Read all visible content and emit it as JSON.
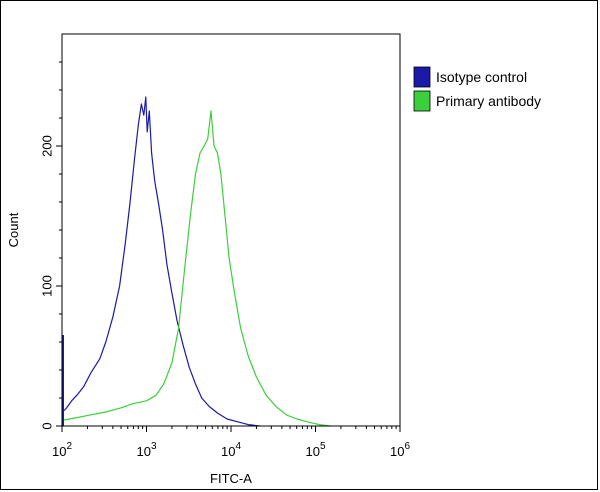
{
  "chart_data": {
    "type": "line",
    "title": "",
    "xlabel": "FITC-A",
    "ylabel": "Count",
    "x_scale": "log",
    "xlim": [
      100,
      1000000
    ],
    "ylim": [
      0,
      280
    ],
    "x_ticks": [
      {
        "value": 100,
        "base": "10",
        "exp": "2"
      },
      {
        "value": 1000,
        "base": "10",
        "exp": "3"
      },
      {
        "value": 10000,
        "base": "10",
        "exp": "4"
      },
      {
        "value": 100000,
        "base": "10",
        "exp": "5"
      },
      {
        "value": 1000000,
        "base": "10",
        "exp": "6"
      }
    ],
    "y_ticks": [
      {
        "value": 0,
        "label": "0"
      },
      {
        "value": 100,
        "label": "100"
      },
      {
        "value": 200,
        "label": "200"
      }
    ],
    "legend": {
      "position": "top-right"
    },
    "series": [
      {
        "name": "Isotype control",
        "color": "#1a1aa8",
        "x": [
          100,
          110,
          120,
          130,
          150,
          180,
          220,
          280,
          330,
          400,
          480,
          560,
          640,
          720,
          800,
          870,
          930,
          980,
          1020,
          1080,
          1150,
          1250,
          1380,
          1550,
          1750,
          2000,
          2300,
          2700,
          3200,
          3800,
          4500,
          5500,
          7000,
          9000,
          12000,
          16000,
          22000
        ],
        "y": [
          10,
          12,
          15,
          18,
          22,
          28,
          38,
          48,
          60,
          78,
          100,
          130,
          160,
          190,
          215,
          230,
          222,
          235,
          210,
          225,
          195,
          175,
          160,
          140,
          115,
          95,
          75,
          58,
          42,
          30,
          20,
          14,
          9,
          5,
          3,
          1,
          0
        ]
      },
      {
        "name": "Primary antibody",
        "color": "#3ccf3c",
        "x": [
          100,
          150,
          220,
          330,
          500,
          700,
          1000,
          1300,
          1600,
          2000,
          2400,
          2800,
          3300,
          3800,
          4300,
          4800,
          5300,
          5800,
          6300,
          6900,
          7600,
          8500,
          9500,
          11000,
          13000,
          16000,
          20000,
          26000,
          34000,
          45000,
          60000,
          80000,
          110000,
          150000
        ],
        "y": [
          4,
          6,
          8,
          10,
          13,
          16,
          18,
          22,
          30,
          45,
          70,
          110,
          150,
          180,
          195,
          200,
          205,
          225,
          200,
          195,
          180,
          150,
          120,
          95,
          70,
          50,
          35,
          22,
          14,
          8,
          5,
          3,
          1,
          0
        ]
      }
    ]
  }
}
